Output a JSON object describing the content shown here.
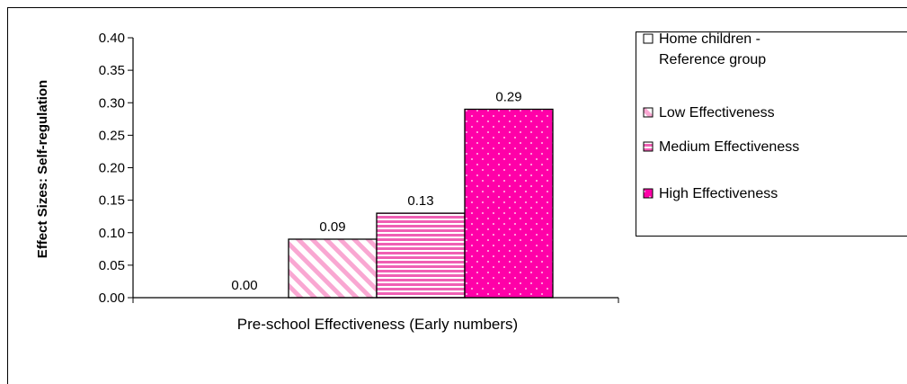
{
  "chart_data": {
    "type": "bar",
    "xlabel": "Pre-school Effectiveness (Early numbers)",
    "ylabel": "Effect Sizes: Self-regulation",
    "ylim": [
      0,
      0.4
    ],
    "yticks": [
      "0.00",
      "0.05",
      "0.10",
      "0.15",
      "0.20",
      "0.25",
      "0.30",
      "0.35",
      "0.40"
    ],
    "grid": false,
    "legend_position": "right",
    "series": [
      {
        "name": "Home children - Reference group",
        "value": 0.0,
        "label": "0.00",
        "fill": "none",
        "color": "#000000"
      },
      {
        "name": "Low Effectiveness",
        "value": 0.09,
        "label": "0.09",
        "fill": "diagonal-stripes",
        "color": "#f9a7d2"
      },
      {
        "name": "Medium Effectiveness",
        "value": 0.13,
        "label": "0.13",
        "fill": "horizontal-stripes",
        "color": "#f05fb4"
      },
      {
        "name": "High Effectiveness",
        "value": 0.29,
        "label": "0.29",
        "fill": "dotted",
        "color": "#ff00a8"
      }
    ],
    "legend_lines": [
      [
        "Home children -",
        "Reference group"
      ],
      [
        "Low Effectiveness"
      ],
      [
        "Medium Effectiveness"
      ],
      [
        "High Effectiveness"
      ]
    ]
  }
}
